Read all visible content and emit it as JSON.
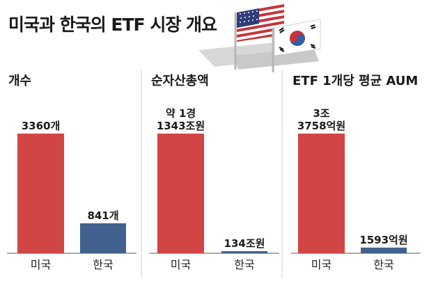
{
  "header": {
    "title": "미국과 한국의 ETF 시장 개요"
  },
  "flags": {
    "us": "us-flag",
    "kr": "kr-flag"
  },
  "colors": {
    "us": "#d14545",
    "kr": "#43618f"
  },
  "chart_data": [
    {
      "type": "bar",
      "title": "개수",
      "categories": [
        "미국",
        "한국"
      ],
      "values": [
        3360,
        841
      ],
      "data_labels": [
        "3360개",
        "841개"
      ],
      "unit": "개",
      "grid": false
    },
    {
      "type": "bar",
      "title": "순자산총액",
      "categories": [
        "미국",
        "한국"
      ],
      "values": [
        11343,
        134
      ],
      "data_labels": [
        "약 1경\n1343조원",
        "134조원"
      ],
      "unit": "조원",
      "grid": false
    },
    {
      "type": "bar",
      "title": "ETF 1개당 평균 AUM",
      "categories": [
        "미국",
        "한국"
      ],
      "values": [
        33758,
        1593
      ],
      "data_labels": [
        "3조\n3758억원",
        "1593억원"
      ],
      "unit": "억원",
      "grid": false
    }
  ]
}
